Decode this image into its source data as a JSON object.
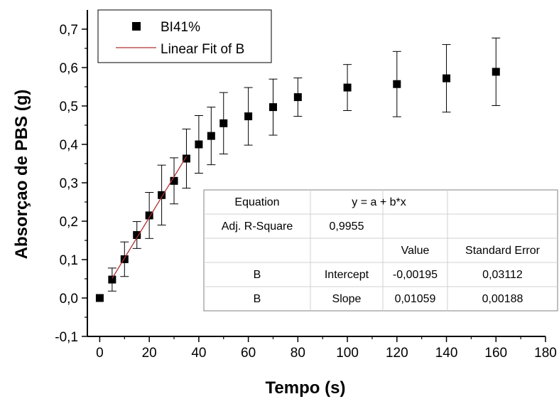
{
  "chart_data": {
    "type": "scatter",
    "xlabel": "Tempo (s)",
    "ylabel": "Absorçao de PBS (g)",
    "xlim": [
      -5,
      180
    ],
    "ylim": [
      -0.1,
      0.75
    ],
    "xticks": [
      0,
      20,
      40,
      60,
      80,
      100,
      120,
      140,
      160,
      180
    ],
    "xtick_labels": [
      "0",
      "20",
      "40",
      "60",
      "80",
      "100",
      "120",
      "140",
      "160",
      "180"
    ],
    "yticks": [
      -0.1,
      0.0,
      0.1,
      0.2,
      0.3,
      0.4,
      0.5,
      0.6,
      0.7
    ],
    "ytick_labels": [
      "-0,1",
      "0,0",
      "0,1",
      "0,2",
      "0,3",
      "0,4",
      "0,5",
      "0,6",
      "0,7"
    ],
    "series": [
      {
        "name": "BI41%",
        "x": [
          0,
          5,
          10,
          15,
          20,
          25,
          30,
          35,
          40,
          45,
          50,
          60,
          70,
          80,
          100,
          120,
          140,
          160
        ],
        "y": [
          0.0,
          0.048,
          0.101,
          0.164,
          0.215,
          0.268,
          0.305,
          0.363,
          0.4,
          0.422,
          0.455,
          0.473,
          0.497,
          0.523,
          0.548,
          0.557,
          0.572,
          0.589
        ],
        "err": [
          0,
          0.03,
          0.045,
          0.035,
          0.06,
          0.078,
          0.06,
          0.077,
          0.075,
          0.075,
          0.08,
          0.075,
          0.073,
          0.05,
          0.06,
          0.085,
          0.088,
          0.088
        ]
      }
    ],
    "fit": {
      "name": "Linear Fit of B",
      "intercept": -0.00195,
      "slope": 0.01059,
      "x_range": [
        5,
        35
      ],
      "color": "#b03030"
    },
    "legend": {
      "position": "top-left",
      "entries": [
        "BI41%",
        "Linear Fit of B"
      ]
    },
    "table": {
      "rows": [
        [
          "Equation",
          "y = a + b*x",
          "",
          ""
        ],
        [
          "Adj. R-Square",
          "0,9955",
          "",
          ""
        ],
        [
          "",
          "",
          "Value",
          "Standard Error"
        ],
        [
          "B",
          "Intercept",
          "-0,00195",
          "0,03112"
        ],
        [
          "B",
          "Slope",
          "0,01059",
          "0,00188"
        ]
      ]
    }
  }
}
